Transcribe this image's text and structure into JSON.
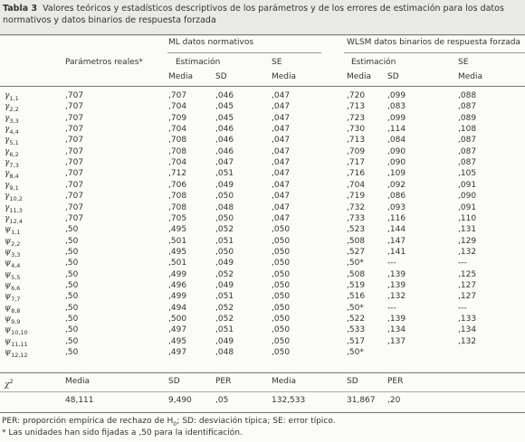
{
  "caption": {
    "label": "Tabla 3",
    "text": "Valores teóricos y estadísticos descriptivos de los parámetros y de los errores de estimación para los datos normativos y datos binarios de respuesta forzada"
  },
  "table": {
    "groups": [
      "ML datos normativos",
      "WLSM datos binarios de respuesta forzada"
    ],
    "header2": [
      "Parámetros reales*",
      "Estimación",
      "SE",
      "Estimación",
      "SE"
    ],
    "header3": [
      "Media",
      "SD",
      "Media",
      "Media",
      "SD",
      "Media"
    ],
    "rows": [
      {
        "param": "γ",
        "sub": "1,1",
        "cells": [
          ",707",
          ",707",
          ",046",
          ",047",
          ",720",
          ",099",
          ",088"
        ]
      },
      {
        "param": "γ",
        "sub": "2,2",
        "cells": [
          ",707",
          ",704",
          ",045",
          ",047",
          ",713",
          ",083",
          ",087"
        ]
      },
      {
        "param": "γ",
        "sub": "3,3",
        "cells": [
          ",707",
          ",709",
          ",045",
          ",047",
          ",723",
          ",099",
          ",089"
        ]
      },
      {
        "param": "γ",
        "sub": "4,4",
        "cells": [
          ",707",
          ",704",
          ",046",
          ",047",
          ",730",
          ",114",
          ",108"
        ]
      },
      {
        "param": "γ",
        "sub": "5,1",
        "cells": [
          ",707",
          ",708",
          ",046",
          ",047",
          ",713",
          ",084",
          ",087"
        ]
      },
      {
        "param": "γ",
        "sub": "6,2",
        "cells": [
          ",707",
          ",708",
          ",046",
          ",047",
          ",709",
          ",090",
          ",087"
        ]
      },
      {
        "param": "γ",
        "sub": "7,3",
        "cells": [
          ",707",
          ",704",
          ",047",
          ",047",
          ",717",
          ",090",
          ",087"
        ]
      },
      {
        "param": "γ",
        "sub": "8,4",
        "cells": [
          ",707",
          ",712",
          ",051",
          ",047",
          ",716",
          ",109",
          ",105"
        ]
      },
      {
        "param": "γ",
        "sub": "9,1",
        "cells": [
          ",707",
          ",706",
          ",049",
          ",047",
          ",704",
          ",092",
          ",091"
        ]
      },
      {
        "param": "γ",
        "sub": "10,2",
        "cells": [
          ",707",
          ",708",
          ",050",
          ",047",
          ",719",
          ",086",
          ",090"
        ]
      },
      {
        "param": "γ",
        "sub": "11,3",
        "cells": [
          ",707",
          ",708",
          ",048",
          ",047",
          ",732",
          ",093",
          ",091"
        ]
      },
      {
        "param": "γ",
        "sub": "12,4",
        "cells": [
          ",707",
          ",705",
          ",050",
          ",047",
          ",733",
          ",116",
          ",110"
        ]
      },
      {
        "param": "ψ",
        "sub": "1,1",
        "cells": [
          ",50",
          ",495",
          ",052",
          ",050",
          ",523",
          ",144",
          ",131"
        ]
      },
      {
        "param": "ψ",
        "sub": "2,2",
        "cells": [
          ",50",
          ",501",
          ",051",
          ",050",
          ",508",
          ",147",
          ",129"
        ]
      },
      {
        "param": "ψ",
        "sub": "3,3",
        "cells": [
          ",50",
          ",495",
          ",050",
          ",050",
          ",527",
          ",141",
          ",132"
        ]
      },
      {
        "param": "ψ",
        "sub": "4,4",
        "cells": [
          ",50",
          ",501",
          ",049",
          ",050",
          ",50*",
          "---",
          "---"
        ]
      },
      {
        "param": "ψ",
        "sub": "5,5",
        "cells": [
          ",50",
          ",499",
          ",052",
          ",050",
          ",508",
          ",139",
          ",125"
        ]
      },
      {
        "param": "ψ",
        "sub": "6,6",
        "cells": [
          ",50",
          ",496",
          ",049",
          ",050",
          ",519",
          ",139",
          ",127"
        ]
      },
      {
        "param": "ψ",
        "sub": "7,7",
        "cells": [
          ",50",
          ",499",
          ",051",
          ",050",
          ",516",
          ",132",
          ",127"
        ]
      },
      {
        "param": "ψ",
        "sub": "8,8",
        "cells": [
          ",50",
          ",494",
          ",052",
          ",050",
          ",50*",
          "---",
          "---"
        ]
      },
      {
        "param": "ψ",
        "sub": "9,9",
        "cells": [
          ",50",
          ",500",
          ",052",
          ",050",
          ",522",
          ",139",
          ",133"
        ]
      },
      {
        "param": "ψ",
        "sub": "10,10",
        "cells": [
          ",50",
          ",497",
          ",051",
          ",050",
          ",533",
          ",134",
          ",134"
        ]
      },
      {
        "param": "ψ",
        "sub": "11,11",
        "cells": [
          ",50",
          ",495",
          ",049",
          ",050",
          ",517",
          ",137",
          ",132"
        ]
      },
      {
        "param": "ψ",
        "sub": "12,12",
        "cells": [
          ",50",
          ",497",
          ",048",
          ",050",
          ",50*",
          null,
          null
        ]
      }
    ],
    "chi": {
      "param": "χ",
      "sup": "2",
      "header": [
        "Media",
        "SD",
        "PER",
        "Media",
        "SD",
        "PER"
      ],
      "values": [
        "48,111",
        "9,490",
        ",05",
        "132,533",
        "31,867",
        ",20"
      ]
    }
  },
  "notes": [
    {
      "before": "PER: proporción empírica de rechazo de H",
      "sub": "0",
      "after": "; SD: desviación típica; SE: error típico."
    },
    {
      "text": "* Las unidades han sido fijadas a ,50 para la identificación."
    }
  ]
}
